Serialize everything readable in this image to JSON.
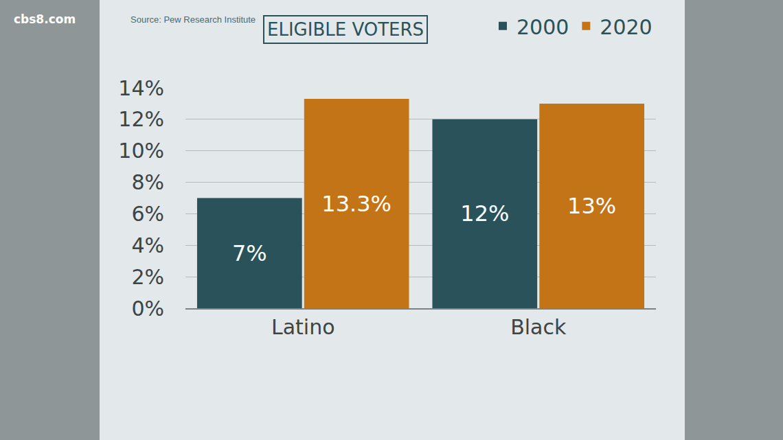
{
  "chart_data": {
    "type": "bar",
    "title": "ELIGIBLE VOTERS",
    "source": "Source: Pew Research Institute",
    "watermark": "cbs8.com",
    "categories": [
      "Latino",
      "Black"
    ],
    "series": [
      {
        "name": "2000",
        "color": "#29525b",
        "values": [
          7,
          12
        ],
        "value_labels": [
          "7%",
          "12%"
        ]
      },
      {
        "name": "2020",
        "color": "#c37416",
        "values": [
          13.3,
          13
        ],
        "value_labels": [
          "13.3%",
          "13%"
        ]
      }
    ],
    "ylim": [
      0,
      14
    ],
    "yticks": [
      {
        "value": 0,
        "label": "0%"
      },
      {
        "value": 2,
        "label": "2%"
      },
      {
        "value": 4,
        "label": "4%"
      },
      {
        "value": 6,
        "label": "6%"
      },
      {
        "value": 8,
        "label": "8%"
      },
      {
        "value": 10,
        "label": "10%"
      },
      {
        "value": 12,
        "label": "12%"
      },
      {
        "value": 14,
        "label": "14%"
      }
    ],
    "grid": true,
    "legend": "top right",
    "data_labels": true
  }
}
